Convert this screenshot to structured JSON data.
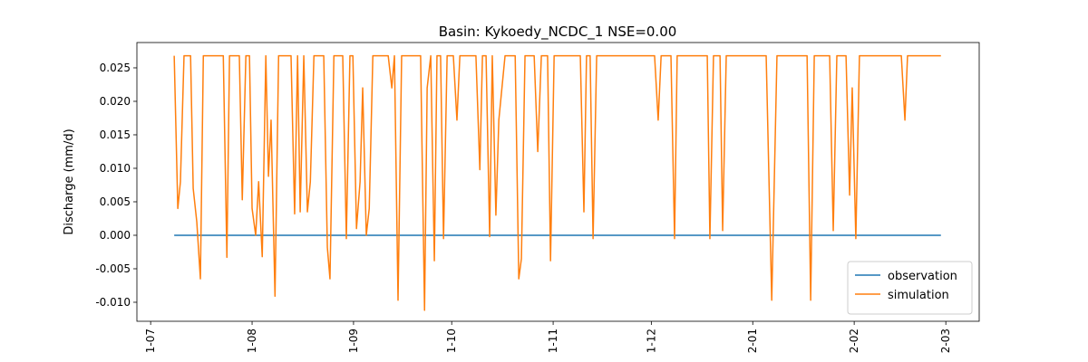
{
  "chart_data": {
    "type": "line",
    "title": "Basin: Kykoedy_NCDC_1 NSE=0.00",
    "ylabel": "Discharge (mm/d)",
    "xlim": [
      -4.2,
      253.2
    ],
    "xticks": [
      {
        "value": 0,
        "label": "1-07"
      },
      {
        "value": 31,
        "label": "1-08"
      },
      {
        "value": 62,
        "label": "1-09"
      },
      {
        "value": 92,
        "label": "1-10"
      },
      {
        "value": 123,
        "label": "1-11"
      },
      {
        "value": 153,
        "label": "1-12"
      },
      {
        "value": 184,
        "label": "2-01"
      },
      {
        "value": 215,
        "label": "2-02"
      },
      {
        "value": 243,
        "label": "2-03"
      }
    ],
    "ylim": [
      -0.01284,
      0.02878
    ],
    "yticks": [
      {
        "value": -0.01,
        "label": "-0.010"
      },
      {
        "value": -0.005,
        "label": "-0.005"
      },
      {
        "value": 0,
        "label": "0.000"
      },
      {
        "value": 0.005,
        "label": "0.005"
      },
      {
        "value": 0.01,
        "label": "0.010"
      },
      {
        "value": 0.015,
        "label": "0.015"
      },
      {
        "value": 0.02,
        "label": "0.020"
      },
      {
        "value": 0.025,
        "label": "0.025"
      }
    ],
    "legend": "lower right",
    "series": [
      {
        "name": "observation",
        "color": "#1f77b4",
        "x": [
          7.2,
          241.5
        ],
        "values": [
          0,
          0
        ]
      },
      {
        "name": "simulation",
        "color": "#ff7f0e",
        "x": [
          7.2,
          8.3,
          9.1,
          10.2,
          12.2,
          13,
          14.1,
          15.2,
          16.1,
          22.2,
          23.3,
          24.1,
          27.1,
          28,
          29.1,
          30.2,
          31,
          32.1,
          33,
          34.1,
          35.2,
          36,
          36.8,
          38,
          39.1,
          42.9,
          44,
          44.9,
          45.7,
          46.8,
          47.9,
          48.8,
          49.9,
          52.9,
          54,
          54.8,
          56,
          58.7,
          59.8,
          60.9,
          61.8,
          62.9,
          64,
          64.8,
          65.9,
          66.8,
          67.9,
          72.6,
          73.7,
          74.5,
          75.6,
          76.7,
          82.5,
          83.7,
          84.5,
          85.6,
          86.7,
          87.5,
          88.6,
          89.5,
          90.6,
          92.5,
          93.6,
          94.5,
          99.4,
          100.6,
          101.4,
          102.5,
          103.6,
          104.4,
          105.5,
          106.4,
          108.3,
          111.4,
          112.5,
          113.3,
          114.4,
          117.2,
          118.3,
          119.4,
          121.3,
          122.2,
          123.3,
          131.3,
          132.4,
          133.2,
          134.3,
          135.2,
          136.3,
          154,
          155.1,
          156,
          159,
          160.1,
          160.9,
          170.1,
          170.9,
          172,
          174,
          174.8,
          175.9,
          188.1,
          189.8,
          191.4,
          200.6,
          201.7,
          202.8,
          207.5,
          208.6,
          209.7,
          212.5,
          213.6,
          214.4,
          215.5,
          216.6,
          229.4,
          230.5,
          231.3,
          241.5
        ],
        "values": [
          0.0268,
          0.004,
          0.008,
          0.0268,
          0.0268,
          0.007,
          0.002,
          -0.0065,
          0.0268,
          0.0268,
          -0.0033,
          0.0268,
          0.0268,
          0.0053,
          0.0268,
          0.0268,
          0.004,
          0.0,
          0.008,
          -0.0032,
          0.0268,
          0.0088,
          0.0172,
          -0.0091,
          0.0268,
          0.0268,
          0.0032,
          0.0268,
          0.0035,
          0.0268,
          0.0035,
          0.008,
          0.0268,
          0.0268,
          -0.0018,
          -0.0065,
          0.0268,
          0.0268,
          -0.0005,
          0.0268,
          0.0268,
          0.001,
          0.008,
          0.022,
          0.0,
          0.004,
          0.0268,
          0.0268,
          0.022,
          0.0268,
          -0.0097,
          0.0268,
          0.0268,
          -0.0112,
          0.022,
          0.0268,
          -0.0038,
          0.0268,
          0.0268,
          -0.0005,
          0.0268,
          0.0268,
          0.0172,
          0.0268,
          0.0268,
          0.0098,
          0.0268,
          0.0268,
          -0.0002,
          0.0268,
          0.003,
          0.0172,
          0.0268,
          0.0268,
          -0.0065,
          -0.0035,
          0.0268,
          0.0268,
          0.0125,
          0.0268,
          0.0268,
          -0.0038,
          0.0268,
          0.0268,
          0.0035,
          0.0268,
          0.0268,
          -0.0005,
          0.0268,
          0.0268,
          0.0172,
          0.0268,
          0.0268,
          -0.0005,
          0.0268,
          0.0268,
          -0.0005,
          0.0268,
          0.0268,
          0.0007,
          0.0268,
          0.0268,
          -0.0097,
          0.0268,
          0.0268,
          -0.0097,
          0.0268,
          0.0268,
          0.0007,
          0.0268,
          0.0268,
          0.006,
          0.022,
          -0.0005,
          0.0268,
          0.0268,
          0.0172,
          0.0268,
          0.0268
        ]
      }
    ]
  }
}
